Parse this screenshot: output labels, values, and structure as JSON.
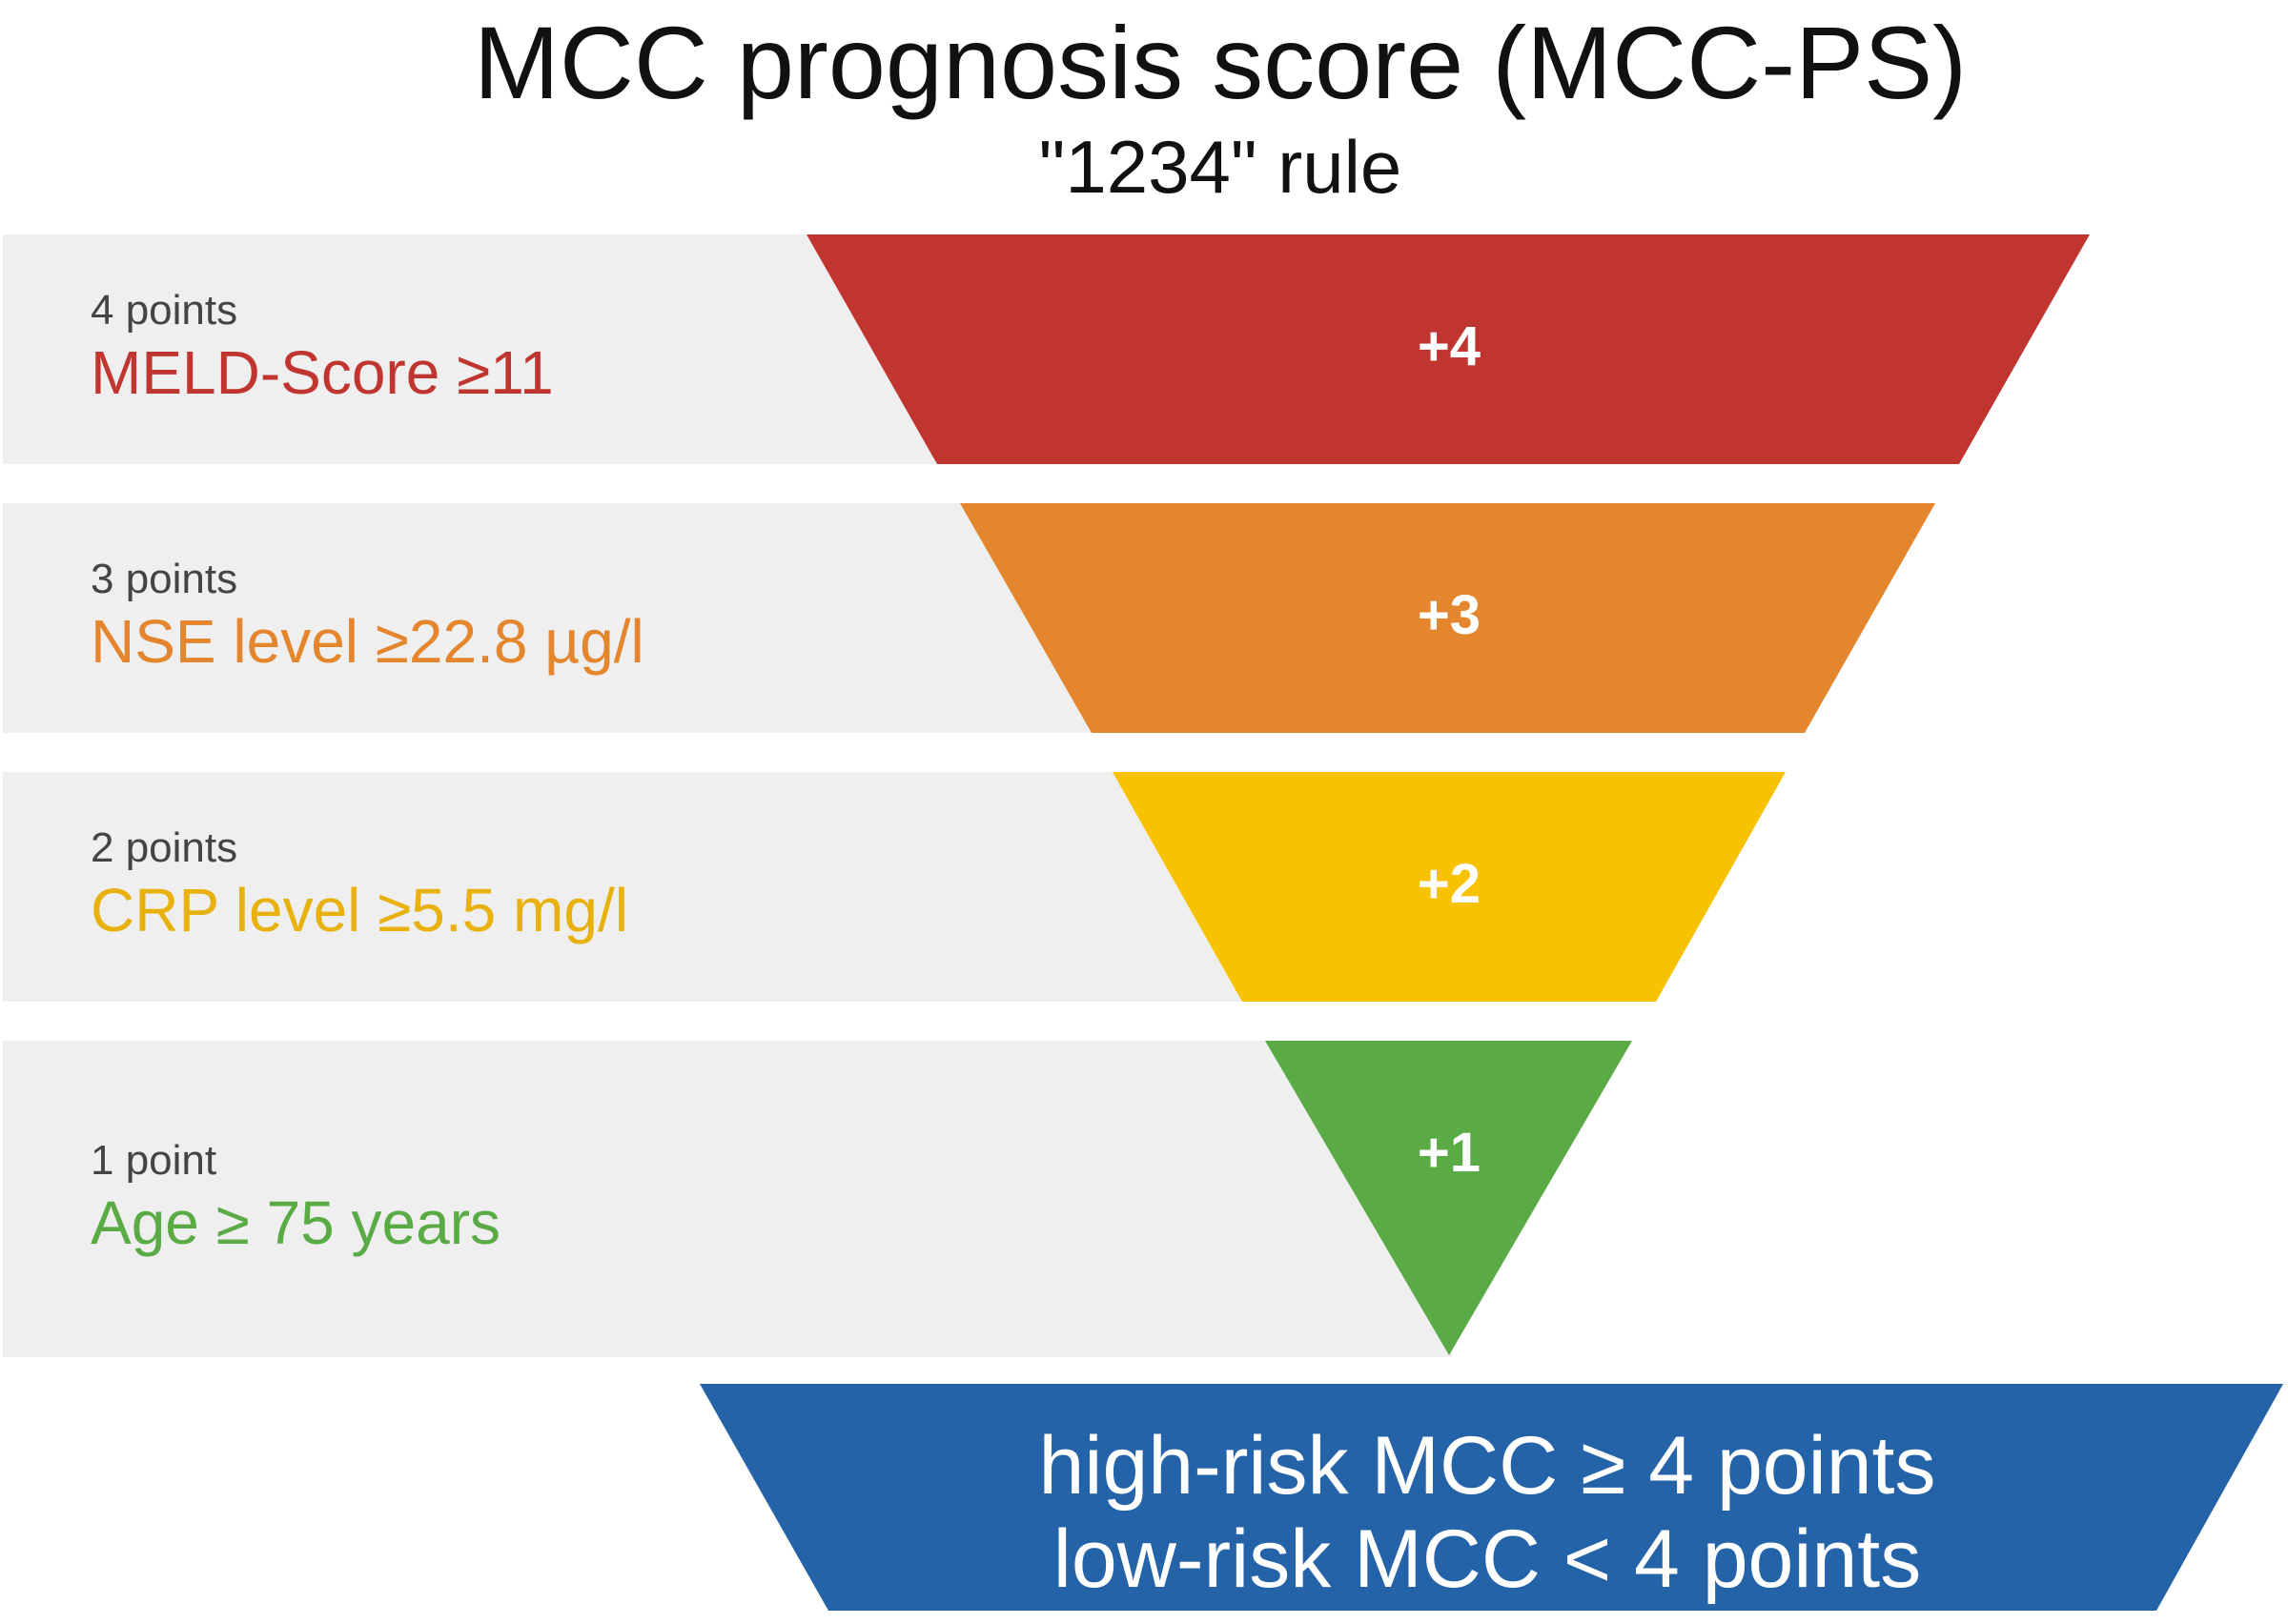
{
  "title": "MCC prognosis score (MCC-PS)",
  "subtitle": "\"1234\" rule",
  "criteria": [
    {
      "points_label": "4 points",
      "criterion": "MELD-Score ≥11",
      "score": "+4",
      "color": "#c13530"
    },
    {
      "points_label": "3 points",
      "criterion": "NSE level ≥22.8 µg/l",
      "score": "+3",
      "color": "#e3862d"
    },
    {
      "points_label": "2 points",
      "criterion": "CRP level ≥5.5 mg/l",
      "score": "+2",
      "color": "#f8c200"
    },
    {
      "points_label": "1 point",
      "criterion": "Age ≥ 75 years",
      "score": "+1",
      "color": "#5aab45"
    }
  ],
  "result": {
    "high_risk": "high-risk MCC ≥  4 points",
    "low_risk": "low-risk MCC < 4 points",
    "color": "#2463a8"
  },
  "criterion_text_colors": [
    "#c13530",
    "#e3862d",
    "#e8b10e",
    "#5aab45"
  ]
}
